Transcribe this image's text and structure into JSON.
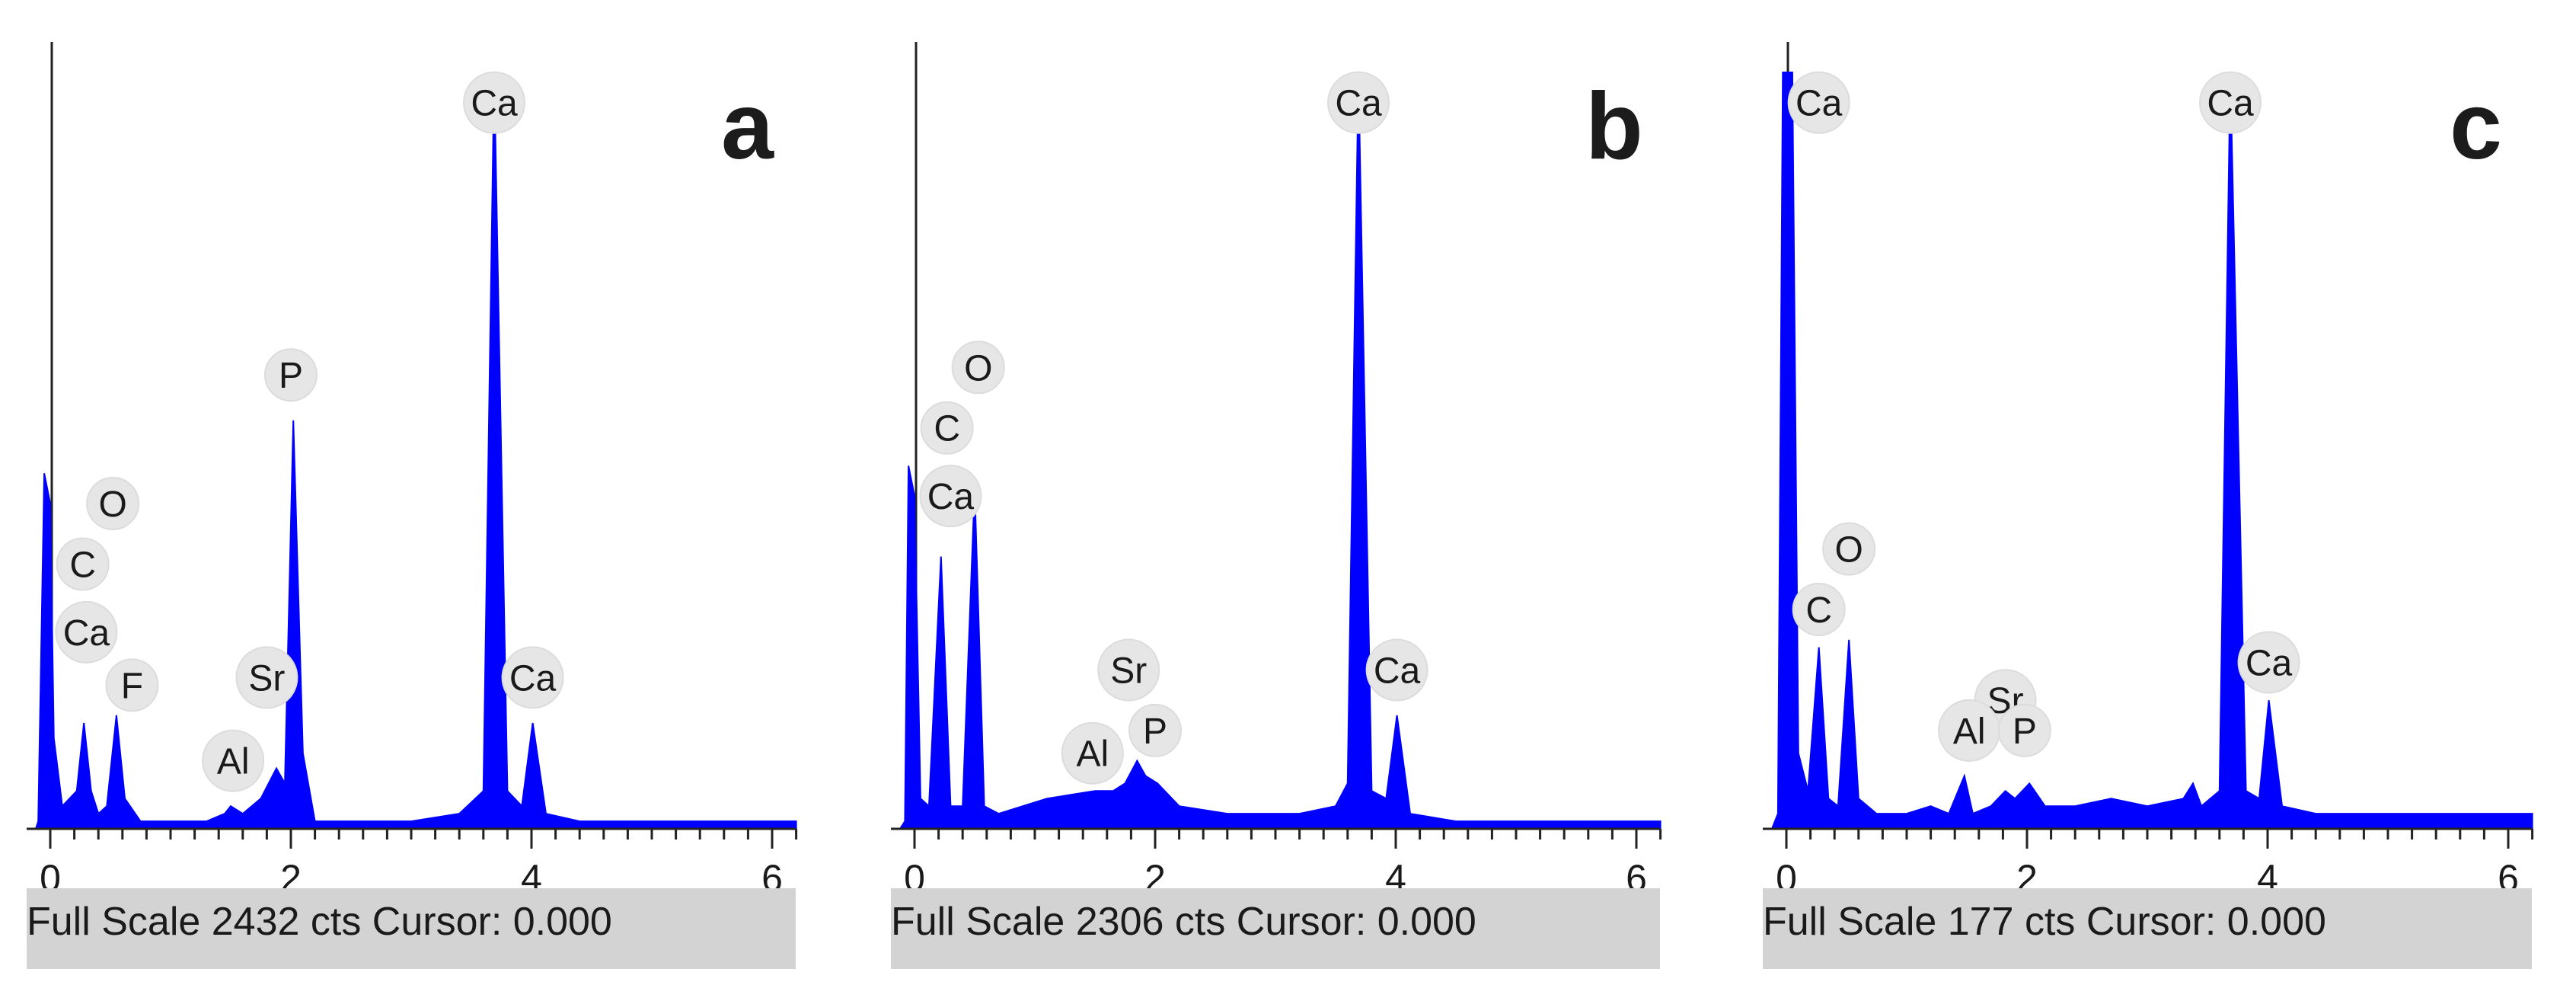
{
  "chart_data": [
    {
      "type": "area",
      "panel_label": "a",
      "xlim": [
        0,
        6.2
      ],
      "x_ticks": [
        "0",
        "2",
        "4",
        "6"
      ],
      "x_tick_values": [
        0,
        2,
        4,
        6
      ],
      "full_scale_cts": 2432,
      "status": {
        "full_scale_text": "Full Scale 2432 cts",
        "cursor_text": "Cursor: 0.000"
      },
      "color": "#0000ff",
      "spectrum": [
        [
          -0.12,
          0
        ],
        [
          -0.1,
          0.01
        ],
        [
          -0.05,
          0.47
        ],
        [
          0.0,
          0.43
        ],
        [
          0.03,
          0.12
        ],
        [
          0.1,
          0.03
        ],
        [
          0.22,
          0.05
        ],
        [
          0.28,
          0.14
        ],
        [
          0.34,
          0.05
        ],
        [
          0.4,
          0.02
        ],
        [
          0.47,
          0.03
        ],
        [
          0.55,
          0.15
        ],
        [
          0.62,
          0.04
        ],
        [
          0.75,
          0.01
        ],
        [
          1.0,
          0.01
        ],
        [
          1.3,
          0.01
        ],
        [
          1.45,
          0.02
        ],
        [
          1.5,
          0.03
        ],
        [
          1.6,
          0.02
        ],
        [
          1.75,
          0.04
        ],
        [
          1.88,
          0.08
        ],
        [
          1.95,
          0.06
        ],
        [
          2.02,
          0.54
        ],
        [
          2.1,
          0.1
        ],
        [
          2.2,
          0.01
        ],
        [
          2.5,
          0.01
        ],
        [
          3.0,
          0.01
        ],
        [
          3.4,
          0.02
        ],
        [
          3.6,
          0.05
        ],
        [
          3.69,
          1.0
        ],
        [
          3.8,
          0.05
        ],
        [
          3.92,
          0.03
        ],
        [
          4.01,
          0.14
        ],
        [
          4.12,
          0.02
        ],
        [
          4.4,
          0.01
        ],
        [
          5.0,
          0.01
        ],
        [
          5.6,
          0.01
        ],
        [
          6.2,
          0.01
        ]
      ],
      "peaks": [
        {
          "label": "Ca",
          "x": 3.69,
          "y": 0.96
        },
        {
          "label": "P",
          "x": 2.0,
          "y": 0.6
        },
        {
          "label": "O",
          "x": 0.52,
          "y": 0.43
        },
        {
          "label": "C",
          "x": 0.27,
          "y": 0.35
        },
        {
          "label": "Ca",
          "x": 0.3,
          "y": 0.26
        },
        {
          "label": "F",
          "x": 0.68,
          "y": 0.19
        },
        {
          "label": "Sr",
          "x": 1.8,
          "y": 0.2
        },
        {
          "label": "Ca",
          "x": 4.01,
          "y": 0.2
        },
        {
          "label": "Al",
          "x": 1.52,
          "y": 0.09
        }
      ]
    },
    {
      "type": "area",
      "panel_label": "b",
      "xlim": [
        0,
        6.2
      ],
      "x_ticks": [
        "0",
        "2",
        "4",
        "6"
      ],
      "x_tick_values": [
        0,
        2,
        4,
        6
      ],
      "full_scale_cts": 2306,
      "status": {
        "full_scale_text": "Full Scale 2306 cts",
        "cursor_text": "Cursor: 0.000"
      },
      "color": "#0000ff",
      "spectrum": [
        [
          -0.12,
          0
        ],
        [
          -0.08,
          0.01
        ],
        [
          -0.05,
          0.48
        ],
        [
          0.0,
          0.44
        ],
        [
          0.05,
          0.04
        ],
        [
          0.12,
          0.03
        ],
        [
          0.22,
          0.36
        ],
        [
          0.3,
          0.03
        ],
        [
          0.4,
          0.03
        ],
        [
          0.5,
          0.45
        ],
        [
          0.58,
          0.03
        ],
        [
          0.7,
          0.02
        ],
        [
          0.9,
          0.03
        ],
        [
          1.1,
          0.04
        ],
        [
          1.3,
          0.045
        ],
        [
          1.5,
          0.05
        ],
        [
          1.65,
          0.05
        ],
        [
          1.75,
          0.06
        ],
        [
          1.85,
          0.09
        ],
        [
          1.92,
          0.07
        ],
        [
          2.02,
          0.06
        ],
        [
          2.2,
          0.03
        ],
        [
          2.6,
          0.02
        ],
        [
          3.2,
          0.02
        ],
        [
          3.5,
          0.03
        ],
        [
          3.6,
          0.06
        ],
        [
          3.69,
          1.0
        ],
        [
          3.8,
          0.05
        ],
        [
          3.92,
          0.04
        ],
        [
          4.01,
          0.15
        ],
        [
          4.12,
          0.02
        ],
        [
          4.5,
          0.01
        ],
        [
          5.2,
          0.01
        ],
        [
          6.2,
          0.01
        ]
      ],
      "peaks": [
        {
          "label": "Ca",
          "x": 3.69,
          "y": 0.96
        },
        {
          "label": "O",
          "x": 0.53,
          "y": 0.61
        },
        {
          "label": "C",
          "x": 0.27,
          "y": 0.53
        },
        {
          "label": "Ca",
          "x": 0.3,
          "y": 0.44
        },
        {
          "label": "Sr",
          "x": 1.78,
          "y": 0.21
        },
        {
          "label": "Al",
          "x": 1.48,
          "y": 0.1
        },
        {
          "label": "P",
          "x": 2.0,
          "y": 0.13
        },
        {
          "label": "Ca",
          "x": 4.01,
          "y": 0.21
        }
      ]
    },
    {
      "type": "area",
      "panel_label": "c",
      "xlim": [
        0,
        6.2
      ],
      "x_ticks": [
        "0",
        "2",
        "4",
        "6"
      ],
      "x_tick_values": [
        0,
        2,
        4,
        6
      ],
      "full_scale_cts": 177,
      "status": {
        "full_scale_text": "Full Scale 177 cts",
        "cursor_text": "Cursor: 0.000"
      },
      "color": "#0000ff",
      "spectrum": [
        [
          -0.12,
          0
        ],
        [
          -0.07,
          0.02
        ],
        [
          -0.03,
          1.0
        ],
        [
          0.05,
          1.0
        ],
        [
          0.1,
          0.1
        ],
        [
          0.18,
          0.05
        ],
        [
          0.27,
          0.24
        ],
        [
          0.35,
          0.04
        ],
        [
          0.43,
          0.03
        ],
        [
          0.52,
          0.25
        ],
        [
          0.6,
          0.04
        ],
        [
          0.75,
          0.02
        ],
        [
          1.0,
          0.02
        ],
        [
          1.2,
          0.03
        ],
        [
          1.35,
          0.02
        ],
        [
          1.48,
          0.07
        ],
        [
          1.55,
          0.02
        ],
        [
          1.7,
          0.03
        ],
        [
          1.82,
          0.05
        ],
        [
          1.9,
          0.04
        ],
        [
          2.02,
          0.06
        ],
        [
          2.15,
          0.03
        ],
        [
          2.4,
          0.03
        ],
        [
          2.7,
          0.04
        ],
        [
          3.0,
          0.03
        ],
        [
          3.3,
          0.04
        ],
        [
          3.38,
          0.06
        ],
        [
          3.45,
          0.03
        ],
        [
          3.6,
          0.05
        ],
        [
          3.69,
          1.0
        ],
        [
          3.82,
          0.05
        ],
        [
          3.93,
          0.04
        ],
        [
          4.01,
          0.17
        ],
        [
          4.12,
          0.03
        ],
        [
          4.4,
          0.02
        ],
        [
          5.0,
          0.02
        ],
        [
          5.6,
          0.02
        ],
        [
          6.2,
          0.02
        ]
      ],
      "peaks": [
        {
          "label": "Ca",
          "x": 0.27,
          "y": 0.96
        },
        {
          "label": "Ca",
          "x": 3.69,
          "y": 0.96
        },
        {
          "label": "O",
          "x": 0.52,
          "y": 0.37
        },
        {
          "label": "C",
          "x": 0.27,
          "y": 0.29
        },
        {
          "label": "Sr",
          "x": 1.82,
          "y": 0.17
        },
        {
          "label": "Al",
          "x": 1.52,
          "y": 0.13
        },
        {
          "label": "P",
          "x": 1.98,
          "y": 0.13
        },
        {
          "label": "Ca",
          "x": 4.01,
          "y": 0.22
        }
      ]
    }
  ]
}
